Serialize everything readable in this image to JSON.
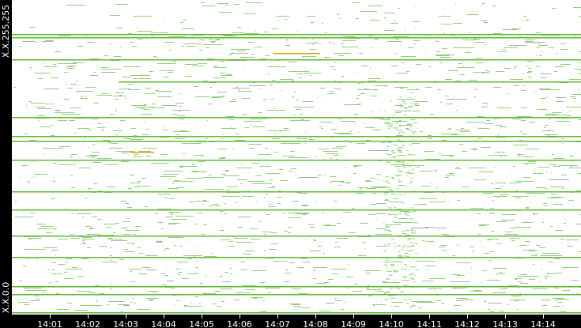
{
  "chart_data": {
    "type": "heatmap",
    "description_of_axes": "",
    "x_ticks": [
      "14:01",
      "14:02",
      "14:03",
      "14:04",
      "14:05",
      "14:06",
      "14:07",
      "14:08",
      "14:09",
      "14:10",
      "14:11",
      "14:12",
      "14:13",
      "14:14"
    ],
    "y_labels": {
      "top": "X.X.255.255",
      "bottom": "X.X.0.0"
    },
    "colors": {
      "strong": "#5cb82e",
      "weak": "#8fd07a",
      "grey": "#a8b0a8",
      "hot": "#d4a800",
      "axis": "#000000"
    }
  }
}
